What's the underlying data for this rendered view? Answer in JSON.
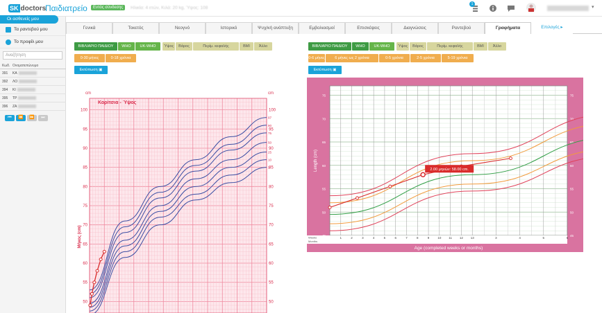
{
  "header": {
    "logo_sk": "SK",
    "logo_doctors": "doctors",
    "section": "Παιδιατρείο",
    "status_badge": "Εντός σύνδεσης",
    "patient_info": "Ηλικία: 4 ετών, Κιλά: 20 kg, Ύψος: 108"
  },
  "notifications": {
    "count": "1"
  },
  "sidebar": {
    "items": [
      "Οι ασθενείς μου",
      "Τα ραντεβού μου",
      "Το προφίλ μου"
    ],
    "search_placeholder": "Αναζήτηση",
    "table_headers": [
      "Κωδ.",
      "Ονοματεπώνυμο"
    ],
    "rows": [
      {
        "id": "391",
        "name": "ΚΑ"
      },
      {
        "id": "392",
        "name": "ΛΟ"
      },
      {
        "id": "394",
        "name": "ΚΙ"
      },
      {
        "id": "395",
        "name": "ΤΡ"
      },
      {
        "id": "396",
        "name": "ΖΑ"
      }
    ],
    "pager": [
      "⏮",
      "⏪",
      "⏩",
      "⏭"
    ]
  },
  "tabs": [
    "Γενικά",
    "Τοκετός",
    "Νεογνό",
    "Ιστορικό",
    "Ψυχ/κή ανάπτυξη",
    "Εμβολιασμοί",
    "Επισκέψεις",
    "Διαγνώσεις",
    "Ραντεβού",
    "Γραφήματα",
    "Επιλογές"
  ],
  "left_panel": {
    "sources": [
      "ΒΙΒΛΙΑΡΙΟ ΠΑΙΔΙΟΥ",
      "WHO",
      "UK-WHO"
    ],
    "measures": [
      "Ύψος",
      "Βάρος",
      "Περίμ. κεφαλής",
      "BMI",
      "Άλλο"
    ],
    "ranges": [
      "0-30 μήνες",
      "0-18 χρόνια"
    ],
    "print": "Εκτύπωση"
  },
  "right_panel": {
    "sources": [
      "ΒΙΒΛΙΑΡΙΟ ΠΑΙΔΙΟΥ",
      "WHO",
      "UK-WHO"
    ],
    "measures": [
      "Ύψος",
      "Βάρος",
      "Περίμ. κεφαλής",
      "BMI",
      "Άλλο"
    ],
    "ranges": [
      "0-6 μήνες",
      "6 μήνες ως 2 χρόνια",
      "0-5 χρόνια",
      "2-5 χρόνια",
      "5-19 χρόνια"
    ],
    "print": "Εκτύπωση"
  },
  "chart_data": [
    {
      "type": "line",
      "title": "Κορίτσια - Ύψος",
      "ylabel": "Μήκος (cm)",
      "unit": "cm",
      "yticks": [
        50,
        55,
        60,
        65,
        70,
        75,
        80,
        85,
        90,
        95,
        100
      ],
      "ylim": [
        47,
        103
      ],
      "percentile_labels": [
        "97",
        "90",
        "75",
        "50",
        "25",
        "10",
        "3"
      ],
      "series": [
        {
          "values": [
            [
              0,
              53
            ],
            [
              6,
              71
            ],
            [
              12,
              80
            ],
            [
              18,
              87
            ],
            [
              24,
              93
            ],
            [
              30,
              98
            ]
          ]
        },
        {
          "values": [
            [
              0,
              52
            ],
            [
              6,
              69.5
            ],
            [
              12,
              78.5
            ],
            [
              18,
              85.5
            ],
            [
              24,
              91
            ],
            [
              30,
              96
            ]
          ]
        },
        {
          "values": [
            [
              0,
              51
            ],
            [
              6,
              68
            ],
            [
              12,
              77
            ],
            [
              18,
              84
            ],
            [
              24,
              89.5
            ],
            [
              30,
              94
            ]
          ]
        },
        {
          "values": [
            [
              0,
              49.5
            ],
            [
              6,
              66
            ],
            [
              12,
              75
            ],
            [
              18,
              82
            ],
            [
              24,
              87
            ],
            [
              30,
              91.5
            ]
          ]
        },
        {
          "values": [
            [
              0,
              48.5
            ],
            [
              6,
              64.5
            ],
            [
              12,
              73.5
            ],
            [
              18,
              80
            ],
            [
              24,
              85
            ],
            [
              30,
              89
            ]
          ]
        },
        {
          "values": [
            [
              0,
              47.5
            ],
            [
              6,
              63
            ],
            [
              12,
              72
            ],
            [
              18,
              78
            ],
            [
              24,
              83
            ],
            [
              30,
              87
            ]
          ]
        },
        {
          "values": [
            [
              0,
              46.5
            ],
            [
              6,
              61.5
            ],
            [
              12,
              70
            ],
            [
              18,
              76.5
            ],
            [
              24,
              81
            ],
            [
              30,
              85
            ]
          ]
        }
      ],
      "patient": {
        "name": "patient",
        "values": [
          [
            0.1,
            49
          ],
          [
            0.4,
            52
          ],
          [
            0.8,
            55
          ],
          [
            1.3,
            58
          ],
          [
            1.9,
            61
          ],
          [
            2.5,
            63
          ]
        ]
      }
    },
    {
      "type": "line",
      "xlabel": "Age (completed weeks or months)",
      "ylabel": "Length (cm)",
      "ylim": [
        45,
        77
      ],
      "yticks": [
        45,
        50,
        55,
        60,
        65,
        70,
        75
      ],
      "x_weeks": [
        "1",
        "2",
        "3",
        "4",
        "5",
        "6",
        "7",
        "8",
        "9",
        "10",
        "11",
        "12",
        "13"
      ],
      "x_months": [
        "3",
        "4",
        "5",
        "6"
      ],
      "row_labels": [
        "Weeks",
        "Months"
      ],
      "percentile_labels": [
        "97th",
        "85th",
        "50th",
        "15th",
        "3rd"
      ],
      "series": [
        {
          "name": "97th",
          "values": [
            [
              0,
              53.5
            ],
            [
              13,
              62.5
            ],
            [
              26,
              71
            ],
            [
              34.5,
              74.5
            ]
          ]
        },
        {
          "name": "85th",
          "values": [
            [
              0,
              52
            ],
            [
              13,
              61
            ],
            [
              26,
              69
            ],
            [
              34.5,
              72.5
            ]
          ]
        },
        {
          "name": "50th",
          "values": [
            [
              0,
              49.5
            ],
            [
              13,
              58
            ],
            [
              26,
              66
            ],
            [
              34.5,
              70
            ]
          ]
        },
        {
          "name": "15th",
          "values": [
            [
              0,
              47.5
            ],
            [
              13,
              56
            ],
            [
              26,
              63.5
            ],
            [
              34.5,
              67.5
            ]
          ]
        },
        {
          "name": "3rd",
          "values": [
            [
              0,
              46
            ],
            [
              13,
              54.5
            ],
            [
              26,
              62
            ],
            [
              34.5,
              65.5
            ]
          ]
        }
      ],
      "patient": {
        "values": [
          [
            0,
            51
          ],
          [
            2.5,
            53
          ],
          [
            5.5,
            55.5
          ],
          [
            8.5,
            58
          ],
          [
            12,
            59.8
          ],
          [
            16.5,
            61.5
          ]
        ]
      },
      "tooltip": "2.00 μηνών: 58.00 cm."
    }
  ],
  "colors": {
    "accent": "#1aa3d9",
    "chart1_bg": "#f07896",
    "chart2_bg": "#d973a0"
  }
}
